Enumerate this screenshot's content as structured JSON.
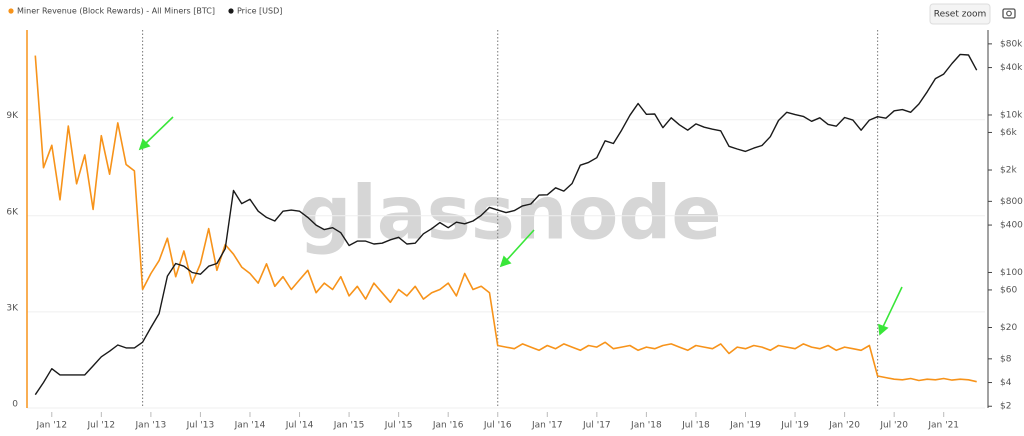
{
  "chart_data": {
    "type": "line",
    "legend": [
      {
        "name": "Miner Revenue (Block Rewards) - All Miners [BTC]",
        "color": "#f7931a"
      },
      {
        "name": "Price [USD]",
        "color": "#1a1a1a"
      }
    ],
    "button": "Reset zoom",
    "watermark": "glassnode",
    "x": [
      "2011-11",
      "2011-12",
      "2012-01",
      "2012-02",
      "2012-03",
      "2012-04",
      "2012-05",
      "2012-06",
      "2012-07",
      "2012-08",
      "2012-09",
      "2012-10",
      "2012-11",
      "2012-12",
      "2013-01",
      "2013-02",
      "2013-03",
      "2013-04",
      "2013-05",
      "2013-06",
      "2013-07",
      "2013-08",
      "2013-09",
      "2013-10",
      "2013-11",
      "2013-12",
      "2014-01",
      "2014-02",
      "2014-03",
      "2014-04",
      "2014-05",
      "2014-06",
      "2014-07",
      "2014-08",
      "2014-09",
      "2014-10",
      "2014-11",
      "2014-12",
      "2015-01",
      "2015-02",
      "2015-03",
      "2015-04",
      "2015-05",
      "2015-06",
      "2015-07",
      "2015-08",
      "2015-09",
      "2015-10",
      "2015-11",
      "2015-12",
      "2016-01",
      "2016-02",
      "2016-03",
      "2016-04",
      "2016-05",
      "2016-06",
      "2016-07",
      "2016-08",
      "2016-09",
      "2016-10",
      "2016-11",
      "2016-12",
      "2017-01",
      "2017-02",
      "2017-03",
      "2017-04",
      "2017-05",
      "2017-06",
      "2017-07",
      "2017-08",
      "2017-09",
      "2017-10",
      "2017-11",
      "2017-12",
      "2018-01",
      "2018-02",
      "2018-03",
      "2018-04",
      "2018-05",
      "2018-06",
      "2018-07",
      "2018-08",
      "2018-09",
      "2018-10",
      "2018-11",
      "2018-12",
      "2019-01",
      "2019-02",
      "2019-03",
      "2019-04",
      "2019-05",
      "2019-06",
      "2019-07",
      "2019-08",
      "2019-09",
      "2019-10",
      "2019-11",
      "2019-12",
      "2020-01",
      "2020-02",
      "2020-03",
      "2020-04",
      "2020-05",
      "2020-06",
      "2020-07",
      "2020-08",
      "2020-09",
      "2020-10",
      "2020-11",
      "2020-12",
      "2021-01",
      "2021-02",
      "2021-03",
      "2021-04",
      "2021-05"
    ],
    "series": [
      {
        "name": "Miner Revenue (Block Rewards) - All Miners [BTC]",
        "color": "#f7931a",
        "axis": "y",
        "values": [
          11000,
          7500,
          8200,
          6500,
          8800,
          7000,
          7900,
          6200,
          8500,
          7300,
          8900,
          7600,
          7400,
          3700,
          4200,
          4600,
          5300,
          4100,
          4900,
          3900,
          4500,
          5600,
          4300,
          5100,
          4800,
          4400,
          4200,
          3900,
          4500,
          3800,
          4100,
          3700,
          4000,
          4300,
          3600,
          3900,
          3700,
          4100,
          3500,
          3800,
          3400,
          3900,
          3600,
          3300,
          3700,
          3500,
          3800,
          3400,
          3600,
          3700,
          3900,
          3500,
          4200,
          3700,
          3800,
          3600,
          1950,
          1900,
          1850,
          2000,
          1900,
          1800,
          1950,
          1850,
          2000,
          1900,
          1800,
          1950,
          1900,
          2050,
          1850,
          1900,
          1950,
          1800,
          1900,
          1850,
          1950,
          2000,
          1900,
          1800,
          1950,
          1900,
          1850,
          2000,
          1700,
          1900,
          1850,
          1950,
          1900,
          1800,
          1950,
          1900,
          1850,
          2000,
          1900,
          1850,
          1950,
          1800,
          1900,
          1850,
          1800,
          1950,
          1000,
          950,
          900,
          880,
          920,
          860,
          900,
          880,
          920,
          870,
          900,
          880,
          820
        ]
      },
      {
        "name": "Price [USD]",
        "color": "#1a1a1a",
        "axis": "y2",
        "values": [
          2.8,
          4,
          6,
          5,
          5,
          5,
          5,
          6.5,
          8.5,
          10,
          12,
          11,
          11,
          13,
          20,
          30,
          90,
          130,
          120,
          100,
          95,
          120,
          130,
          200,
          1100,
          750,
          850,
          600,
          500,
          450,
          600,
          620,
          600,
          500,
          400,
          350,
          370,
          320,
          220,
          250,
          250,
          230,
          235,
          260,
          280,
          230,
          235,
          310,
          360,
          430,
          370,
          435,
          415,
          450,
          530,
          670,
          620,
          575,
          610,
          700,
          740,
          960,
          970,
          1190,
          1080,
          1350,
          2300,
          2500,
          2870,
          4700,
          4340,
          6400,
          9900,
          14000,
          10200,
          10300,
          6900,
          9200,
          7500,
          6400,
          7700,
          7000,
          6600,
          6300,
          4000,
          3700,
          3450,
          3800,
          4100,
          5300,
          8500,
          10800,
          10100,
          9600,
          8300,
          9200,
          7600,
          7200,
          9300,
          8600,
          6400,
          8600,
          9500,
          9100,
          11300,
          11700,
          10800,
          13800,
          19700,
          29000,
          33000,
          45000,
          58800,
          57700,
          37000
        ]
      }
    ],
    "halvings": [
      "2012-12",
      "2016-07",
      "2020-05"
    ],
    "xlim": [
      "2011-10",
      "2021-06"
    ],
    "xticks": [
      {
        "value": "2012-01",
        "label": "Jan '12"
      },
      {
        "value": "2012-07",
        "label": "Jul '12"
      },
      {
        "value": "2013-01",
        "label": "Jan '13"
      },
      {
        "value": "2013-07",
        "label": "Jul '13"
      },
      {
        "value": "2014-01",
        "label": "Jan '14"
      },
      {
        "value": "2014-07",
        "label": "Jul '14"
      },
      {
        "value": "2015-01",
        "label": "Jan '15"
      },
      {
        "value": "2015-07",
        "label": "Jul '15"
      },
      {
        "value": "2016-01",
        "label": "Jan '16"
      },
      {
        "value": "2016-07",
        "label": "Jul '16"
      },
      {
        "value": "2017-01",
        "label": "Jan '17"
      },
      {
        "value": "2017-07",
        "label": "Jul '17"
      },
      {
        "value": "2018-01",
        "label": "Jan '18"
      },
      {
        "value": "2018-07",
        "label": "Jul '18"
      },
      {
        "value": "2019-01",
        "label": "Jan '19"
      },
      {
        "value": "2019-07",
        "label": "Jul '19"
      },
      {
        "value": "2020-01",
        "label": "Jan '20"
      },
      {
        "value": "2020-07",
        "label": "Jul '20"
      },
      {
        "value": "2021-01",
        "label": "Jan '21"
      }
    ],
    "ylim": [
      0,
      11800
    ],
    "yticks": [
      0,
      {
        "value": 3000,
        "label": "3K"
      },
      {
        "value": 6000,
        "label": "6K"
      },
      {
        "value": 9000,
        "label": "9K"
      }
    ],
    "y2lim": [
      1.9,
      120000
    ],
    "y2log": true,
    "y2ticks": [
      {
        "value": 2,
        "label": "$2"
      },
      {
        "value": 4,
        "label": "$4"
      },
      {
        "value": 8,
        "label": "$8"
      },
      {
        "value": 20,
        "label": "$20"
      },
      {
        "value": 60,
        "label": "$60"
      },
      {
        "value": 100,
        "label": "$100"
      },
      {
        "value": 400,
        "label": "$400"
      },
      {
        "value": 800,
        "label": "$800"
      },
      {
        "value": 2000,
        "label": "$2k"
      },
      {
        "value": 6000,
        "label": "$6k"
      },
      {
        "value": 10000,
        "label": "$10k"
      },
      {
        "value": 40000,
        "label": "$40k"
      },
      {
        "value": 80000,
        "label": "$80k"
      }
    ],
    "grid": true
  }
}
